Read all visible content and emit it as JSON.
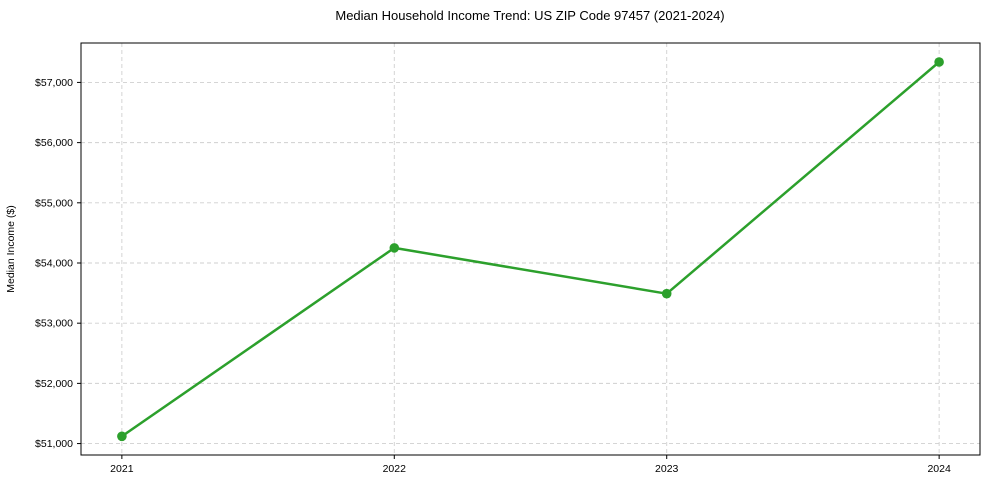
{
  "chart_data": {
    "type": "line",
    "title": "Median Household Income Trend: US ZIP Code 97457 (2021-2024)",
    "xlabel": "",
    "ylabel": "Median Income ($)",
    "x": [
      2021,
      2022,
      2023,
      2024
    ],
    "x_tick_labels": [
      "2021",
      "2022",
      "2023",
      "2024"
    ],
    "series": [
      {
        "name": "Median Household Income",
        "values": [
          51120,
          54250,
          53490,
          57340
        ],
        "color": "#2ca02c",
        "marker": "circle"
      }
    ],
    "y_ticks": [
      {
        "value": 51000,
        "label": "$51,000"
      },
      {
        "value": 52000,
        "label": "$52,000"
      },
      {
        "value": 53000,
        "label": "$53,000"
      },
      {
        "value": 54000,
        "label": "$54,000"
      },
      {
        "value": 55000,
        "label": "$55,000"
      },
      {
        "value": 56000,
        "label": "$56,000"
      },
      {
        "value": 57000,
        "label": "$57,000"
      }
    ],
    "xlim": [
      2020.85,
      2024.15
    ],
    "ylim": [
      50810,
      57655
    ],
    "grid": true,
    "grid_style": "dashed",
    "grid_color": "#cfcfcf",
    "spine_color": "#000000",
    "background_color": "#ffffff",
    "legend": "none"
  }
}
